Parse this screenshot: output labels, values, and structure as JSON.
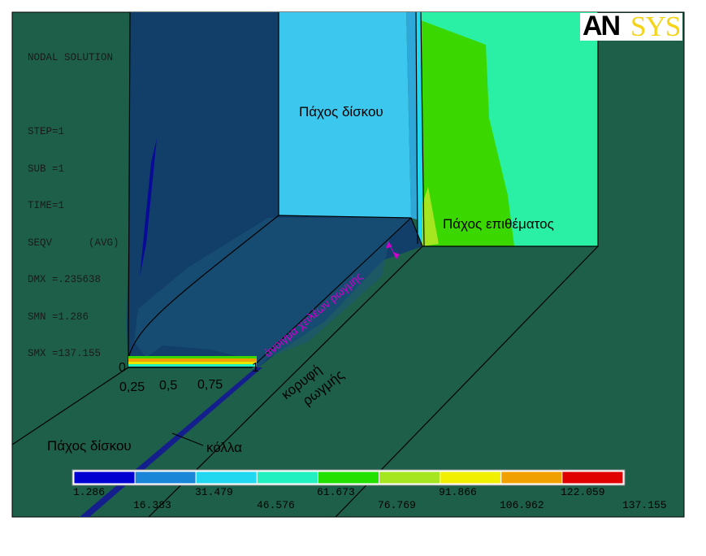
{
  "solution_info": {
    "lines": [
      "NODAL SOLUTION",
      "",
      "STEP=1",
      "SUB =1",
      "TIME=1",
      "SEQV      (AVG)",
      "DMX =.235638",
      "SMN =1.286",
      "SMX =137.155"
    ]
  },
  "logo": {
    "part1": "AN",
    "part2": "SYS"
  },
  "annotations": {
    "disk_thickness_top": "Πάχος δίσκου",
    "patch_thickness": "Πάχος επιθέματος",
    "crack_lip_opening": "άνοιγμα χειλέων ρωγμής",
    "crack_tip_line1": "κορυφή",
    "crack_tip_line2": "ρωγμής",
    "disk_thickness_bottom": "Πάχος δίσκου",
    "adhesive": "κόλλα"
  },
  "axis_ticks": [
    "0",
    "0,25",
    "0,5",
    "0,75",
    "1"
  ],
  "legend": {
    "colors": [
      "#0000d0",
      "#1a86d8",
      "#22d8f0",
      "#22f0c0",
      "#22e000",
      "#a6e620",
      "#f0f000",
      "#f0a000",
      "#e00000"
    ],
    "values": [
      "1.286",
      "16.383",
      "31.479",
      "46.576",
      "61.673",
      "76.769",
      "91.866",
      "106.962",
      "122.059",
      "137.155"
    ]
  },
  "colors": {
    "background_model": "#1e5f4a",
    "dark_blue_zone": "#123f6a",
    "light_blue_face": "#3cc8ee",
    "cyan_green_face": "#2af0a6",
    "green_face": "#3bd800",
    "adhesive": "#141e8c"
  }
}
